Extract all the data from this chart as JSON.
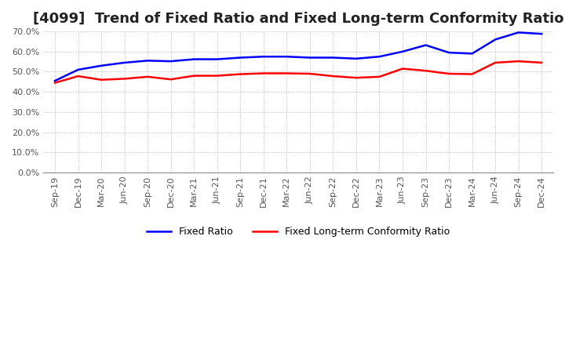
{
  "title": "[4099]  Trend of Fixed Ratio and Fixed Long-term Conformity Ratio",
  "x_labels": [
    "Sep-19",
    "Dec-19",
    "Mar-20",
    "Jun-20",
    "Sep-20",
    "Dec-20",
    "Mar-21",
    "Jun-21",
    "Sep-21",
    "Dec-21",
    "Mar-22",
    "Jun-22",
    "Sep-22",
    "Dec-22",
    "Mar-23",
    "Jun-23",
    "Sep-23",
    "Dec-23",
    "Mar-24",
    "Jun-24",
    "Sep-24",
    "Dec-24"
  ],
  "fixed_ratio": [
    0.455,
    0.51,
    0.53,
    0.545,
    0.555,
    0.552,
    0.562,
    0.562,
    0.57,
    0.575,
    0.575,
    0.57,
    0.57,
    0.565,
    0.575,
    0.6,
    0.632,
    0.595,
    0.59,
    0.66,
    0.695,
    0.688
  ],
  "fixed_lt_ratio": [
    0.445,
    0.478,
    0.46,
    0.465,
    0.475,
    0.462,
    0.48,
    0.48,
    0.488,
    0.492,
    0.492,
    0.49,
    0.478,
    0.47,
    0.475,
    0.515,
    0.505,
    0.49,
    0.488,
    0.545,
    0.552,
    0.545
  ],
  "fixed_ratio_color": "#0000FF",
  "fixed_lt_ratio_color": "#FF0000",
  "ylim": [
    0.0,
    0.7
  ],
  "yticks": [
    0.0,
    0.1,
    0.2,
    0.3,
    0.4,
    0.5,
    0.6,
    0.7
  ],
  "background_color": "#FFFFFF",
  "title_fontsize": 13,
  "legend_labels": [
    "Fixed Ratio",
    "Fixed Long-term Conformity Ratio"
  ]
}
